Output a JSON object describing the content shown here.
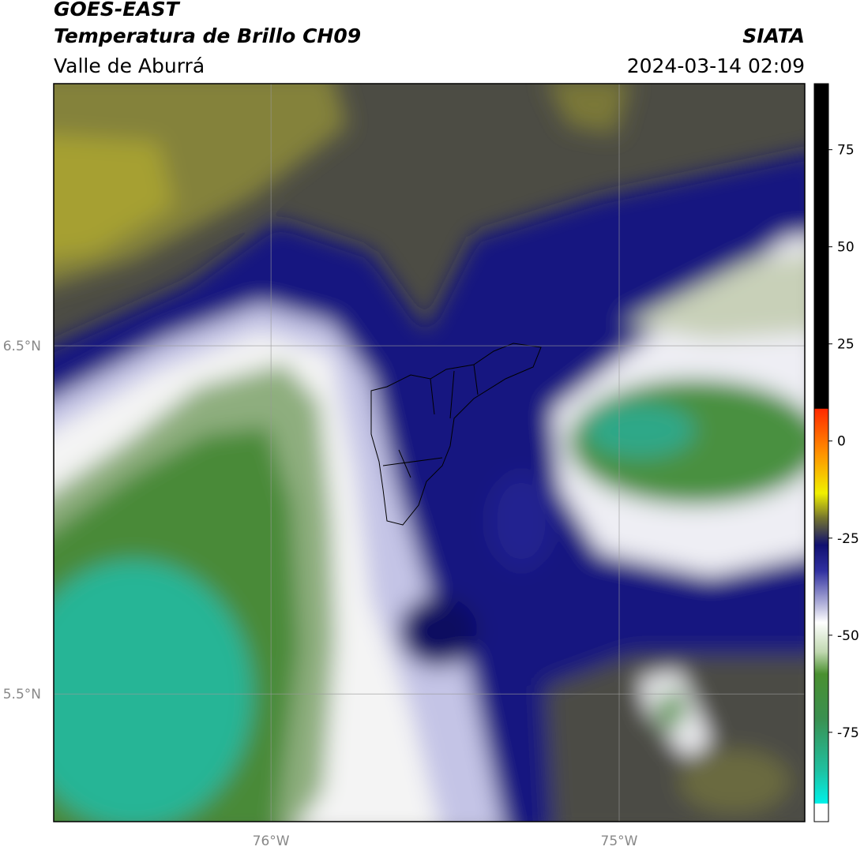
{
  "header": {
    "title": "GOES-EAST",
    "subtitle": "Temperatura de Brillo CH09",
    "region": "Valle de Aburrá",
    "agency": "SIATA",
    "datetime": "2024-03-14 02:09"
  },
  "map": {
    "lonlim": [
      -76.624,
      -74.467
    ],
    "latlim": [
      5.133,
      7.253
    ],
    "lat_ticks": [
      {
        "value": 6.5,
        "label": "6.5°N"
      },
      {
        "value": 5.5,
        "label": "5.5°N"
      }
    ],
    "lon_ticks": [
      {
        "value": -76,
        "label": "76°W"
      },
      {
        "value": -75,
        "label": "75°W"
      }
    ]
  },
  "colorbar": {
    "lim": [
      -98,
      92
    ],
    "ticks": [
      75,
      50,
      25,
      0,
      -25,
      -50,
      -75
    ]
  }
}
